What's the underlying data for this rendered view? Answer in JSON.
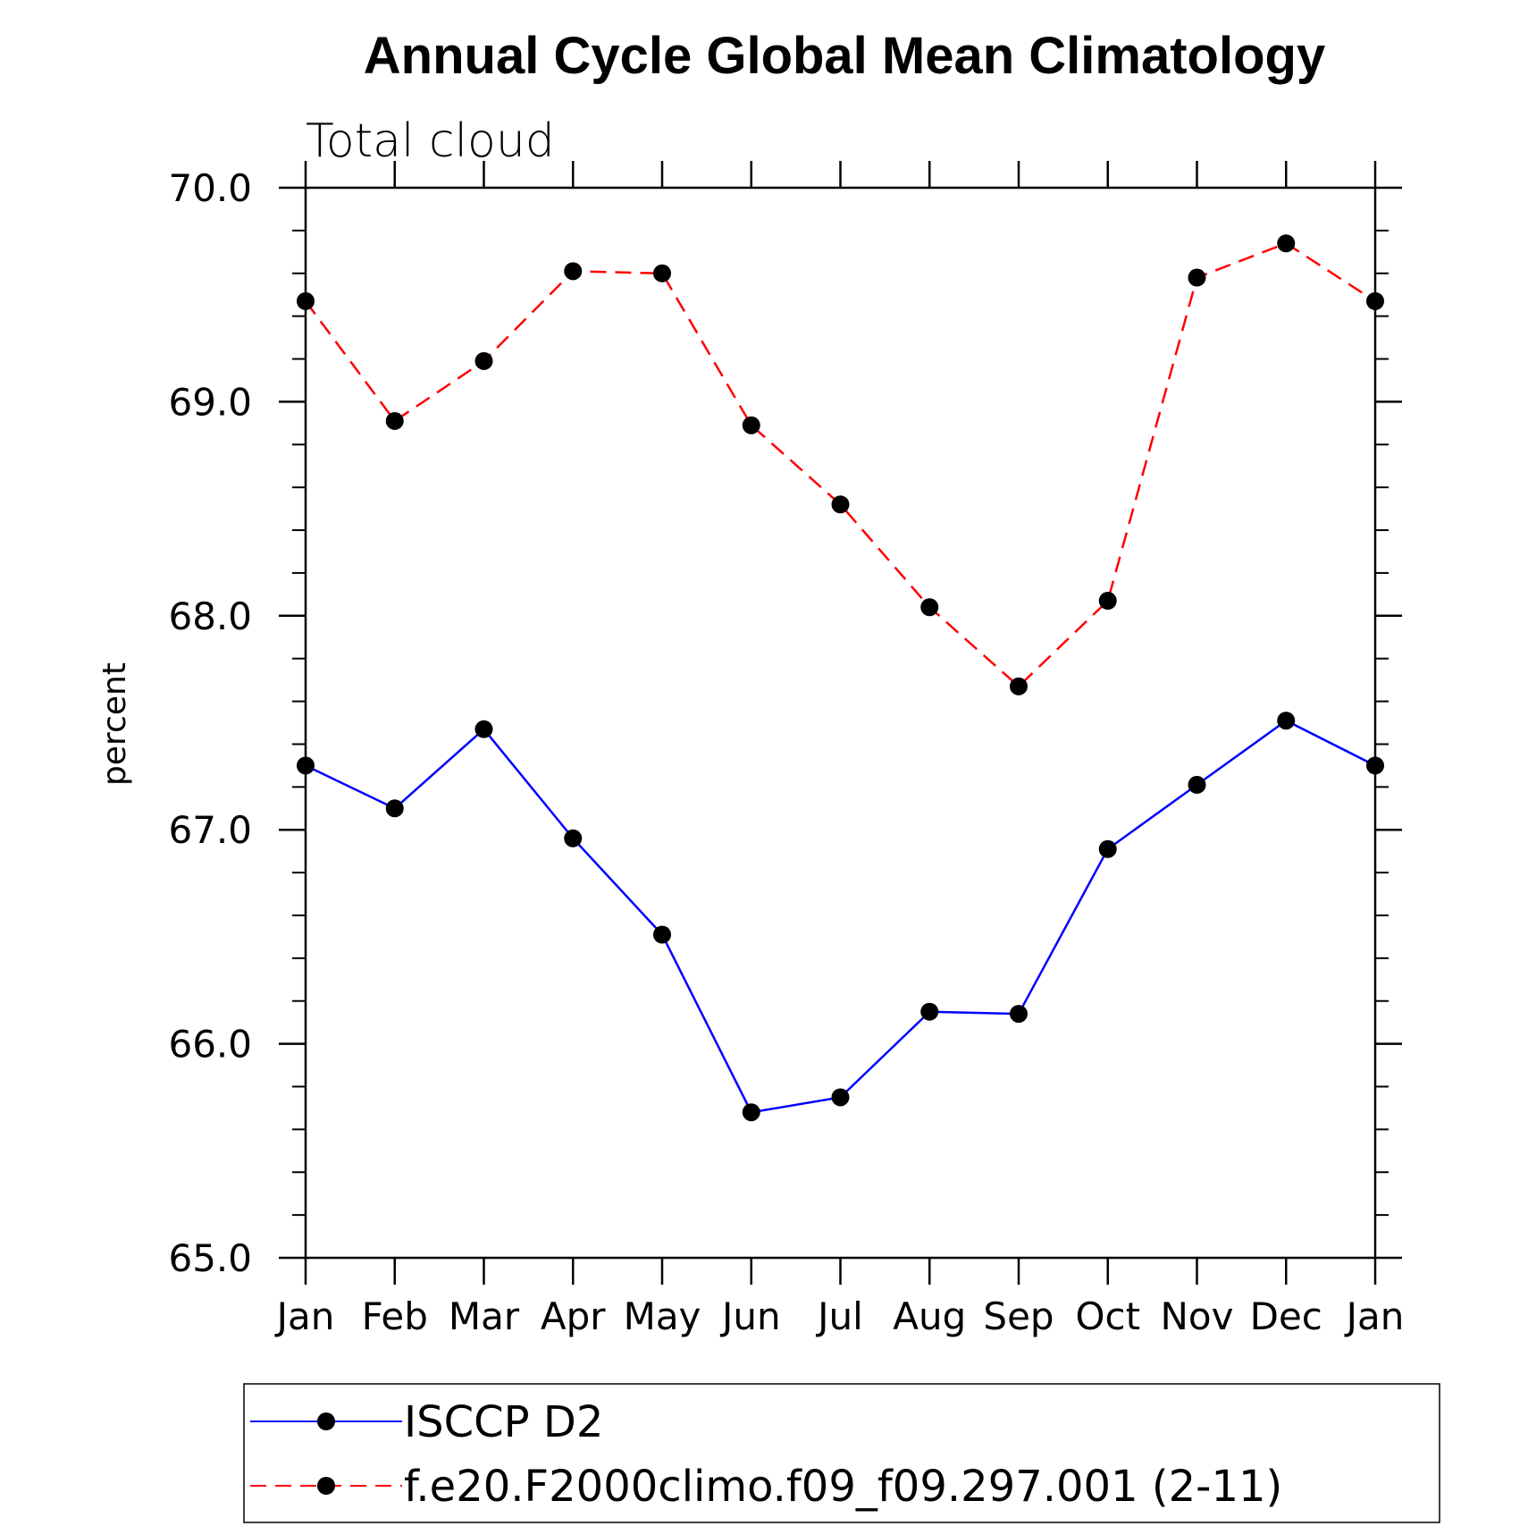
{
  "chart_data": {
    "type": "line",
    "title": "Annual Cycle Global Mean Climatology",
    "subtitle": "Total cloud",
    "xlabel": "",
    "ylabel": "percent",
    "ylim": [
      65.0,
      70.0
    ],
    "yticks": [
      "65.0",
      "66.0",
      "67.0",
      "68.0",
      "69.0",
      "70.0"
    ],
    "yticks_values": [
      65,
      66,
      67,
      68,
      69,
      70
    ],
    "categories": [
      "Jan",
      "Feb",
      "Mar",
      "Apr",
      "May",
      "Jun",
      "Jul",
      "Aug",
      "Sep",
      "Oct",
      "Nov",
      "Dec",
      "Jan"
    ],
    "series": [
      {
        "name": "ISCCP D2",
        "color": "#0000ff",
        "dash": "solid",
        "values": [
          67.3,
          67.1,
          67.47,
          66.96,
          66.51,
          65.68,
          65.75,
          66.15,
          66.14,
          66.91,
          67.21,
          67.51,
          67.3
        ]
      },
      {
        "name": "f.e20.F2000climo.f09_f09.297.001 (2-11)",
        "color": "#ff0000",
        "dash": "dashed",
        "values": [
          69.47,
          68.91,
          69.19,
          69.61,
          69.6,
          68.89,
          68.52,
          68.04,
          67.67,
          68.07,
          69.58,
          69.74,
          69.47
        ]
      }
    ],
    "legend": {
      "position": "bottom"
    },
    "grid": false,
    "marker_color": "#000000"
  }
}
